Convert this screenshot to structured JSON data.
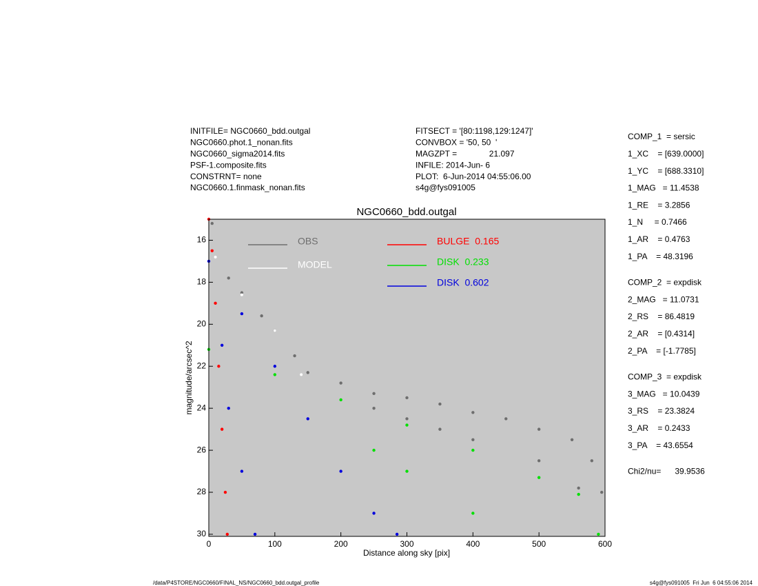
{
  "header_left": [
    "INITFILE= NGC0660_bdd.outgal",
    "NGC0660.phot.1_nonan.fits",
    "NGC0660_sigma2014.fits",
    "PSF-1.composite.fits",
    "CONSTRNT= none",
    "NGC0660.1.finmask_nonan.fits"
  ],
  "header_right": [
    "FITSECT = '[80:1198,129:1247]'",
    "CONVBOX = '50, 50  '",
    "MAGZPT =              21.097",
    "INFILE: 2014-Jun- 6",
    "PLOT:  6-Jun-2014 04:55:06.00",
    "s4g@fys091005"
  ],
  "params": [
    "COMP_1  = sersic",
    "1_XC    = [639.0000]",
    "1_YC    = [688.3310]",
    "1_MAG   = 11.4538",
    "1_RE    = 3.2856",
    "1_N     = 0.7466",
    "1_AR    = 0.4763",
    "1_PA    = 48.3196",
    "COMP_2  = expdisk",
    "2_MAG   = 11.0731",
    "2_RS    = 86.4819",
    "2_AR    = [0.4314]",
    "2_PA    = [-1.7785]",
    "COMP_3  = expdisk",
    "3_MAG   = 10.0439",
    "3_RS    = 23.3824",
    "3_AR    = 0.2433",
    "3_PA    = 43.6554",
    "Chi2/nu=      39.9536"
  ],
  "footer_left": "/data/P4STORE/NGC0660/FINAL_NS/NGC0660_bdd.outgal_profile",
  "footer_right": "s4g@fys091005  Fri Jun  6 04:55:06 2014",
  "chart_data": {
    "type": "scatter",
    "title": "NGC0660_bdd.outgal",
    "x_label": "Distance along sky [pix]",
    "y_label": "magnitude/arcsec^2",
    "xlim": [
      0,
      600
    ],
    "xticks": [
      0,
      100,
      200,
      300,
      400,
      500,
      600
    ],
    "ylim": [
      30.1,
      15
    ],
    "yticks": [
      16,
      18,
      20,
      22,
      24,
      26,
      28,
      30
    ],
    "background": "#c8c8c8",
    "series": [
      {
        "name": "OBS",
        "color": "#6e6e6e",
        "x": [
          5,
          30,
          50,
          80,
          100,
          130,
          150,
          200,
          250,
          300,
          350,
          400,
          450,
          500,
          550,
          580,
          595,
          250,
          300,
          350,
          400,
          500,
          560
        ],
        "values": [
          15.2,
          17.8,
          18.5,
          19.6,
          20.3,
          21.5,
          22.3,
          22.8,
          23.3,
          23.5,
          23.8,
          24.2,
          24.5,
          25,
          25.5,
          26.5,
          28,
          24,
          24.5,
          25,
          25.5,
          26.5,
          27.8
        ]
      },
      {
        "name": "MODEL",
        "color": "#ffffff",
        "x": [
          0,
          10,
          50,
          100,
          140
        ],
        "values": [
          15,
          16.8,
          18.6,
          20.3,
          22.4
        ]
      },
      {
        "name": "BULGE  0.165",
        "color": "#ff0000",
        "x": [
          0,
          5,
          10,
          15,
          20,
          25,
          28
        ],
        "values": [
          15,
          16.5,
          19,
          22,
          25,
          28,
          30
        ]
      },
      {
        "name": "DISK  0.233",
        "color": "#00e000",
        "x": [
          0,
          100,
          200,
          300,
          400,
          500,
          560,
          590,
          250,
          300,
          400
        ],
        "values": [
          21.2,
          22.4,
          23.6,
          24.8,
          26,
          27.3,
          28.1,
          30,
          26,
          27,
          29
        ]
      },
      {
        "name": "DISK  0.602",
        "color": "#0000dd",
        "x": [
          0,
          50,
          100,
          150,
          200,
          250,
          285,
          70,
          50,
          30,
          20
        ],
        "values": [
          17,
          19.5,
          22,
          24.5,
          27,
          29,
          30,
          30,
          27,
          24,
          21
        ]
      }
    ]
  }
}
